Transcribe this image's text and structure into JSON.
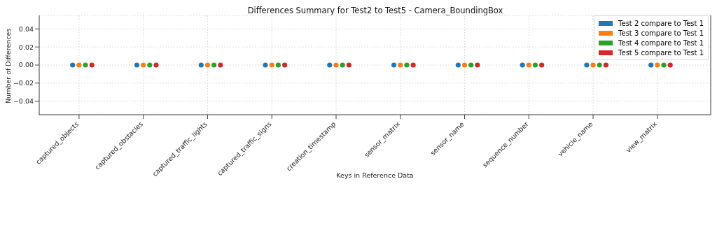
{
  "chart_data": {
    "type": "scatter",
    "title": "Differences Summary for Test2 to Test5 - Camera_BoundingBox",
    "xlabel": "Keys in Reference Data",
    "ylabel": "Number of Differences",
    "categories": [
      "captured_objects",
      "captured_obstacles",
      "captured_traffic_lights",
      "captured_traffic_signs",
      "creation_timestamp",
      "sensor_matrix",
      "sensor_name",
      "sequence_number",
      "vehicle_name",
      "view_matrix"
    ],
    "series": [
      {
        "name": "Test 2 compare to Test 1",
        "color": "#1f77b4",
        "values": [
          0,
          0,
          0,
          0,
          0,
          0,
          0,
          0,
          0,
          0
        ]
      },
      {
        "name": "Test 3 compare to Test 1",
        "color": "#ff7f0e",
        "values": [
          0,
          0,
          0,
          0,
          0,
          0,
          0,
          0,
          0,
          0
        ]
      },
      {
        "name": "Test 4 compare to Test 1",
        "color": "#2ca02c",
        "values": [
          0,
          0,
          0,
          0,
          0,
          0,
          0,
          0,
          0,
          0
        ]
      },
      {
        "name": "Test 5 compare to Test 1",
        "color": "#d62728",
        "values": [
          0,
          0,
          0,
          0,
          0,
          0,
          0,
          0,
          0,
          0
        ]
      }
    ],
    "ylim": [
      -0.055,
      0.055
    ],
    "yticks": [
      {
        "value": -0.04,
        "label": "−0.04"
      },
      {
        "value": -0.02,
        "label": "−0.02"
      },
      {
        "value": 0,
        "label": "0.00"
      },
      {
        "value": 0.02,
        "label": "0.02"
      },
      {
        "value": 0.04,
        "label": "0.04"
      }
    ],
    "grid": true,
    "legend": "top right",
    "marker": "circle"
  }
}
